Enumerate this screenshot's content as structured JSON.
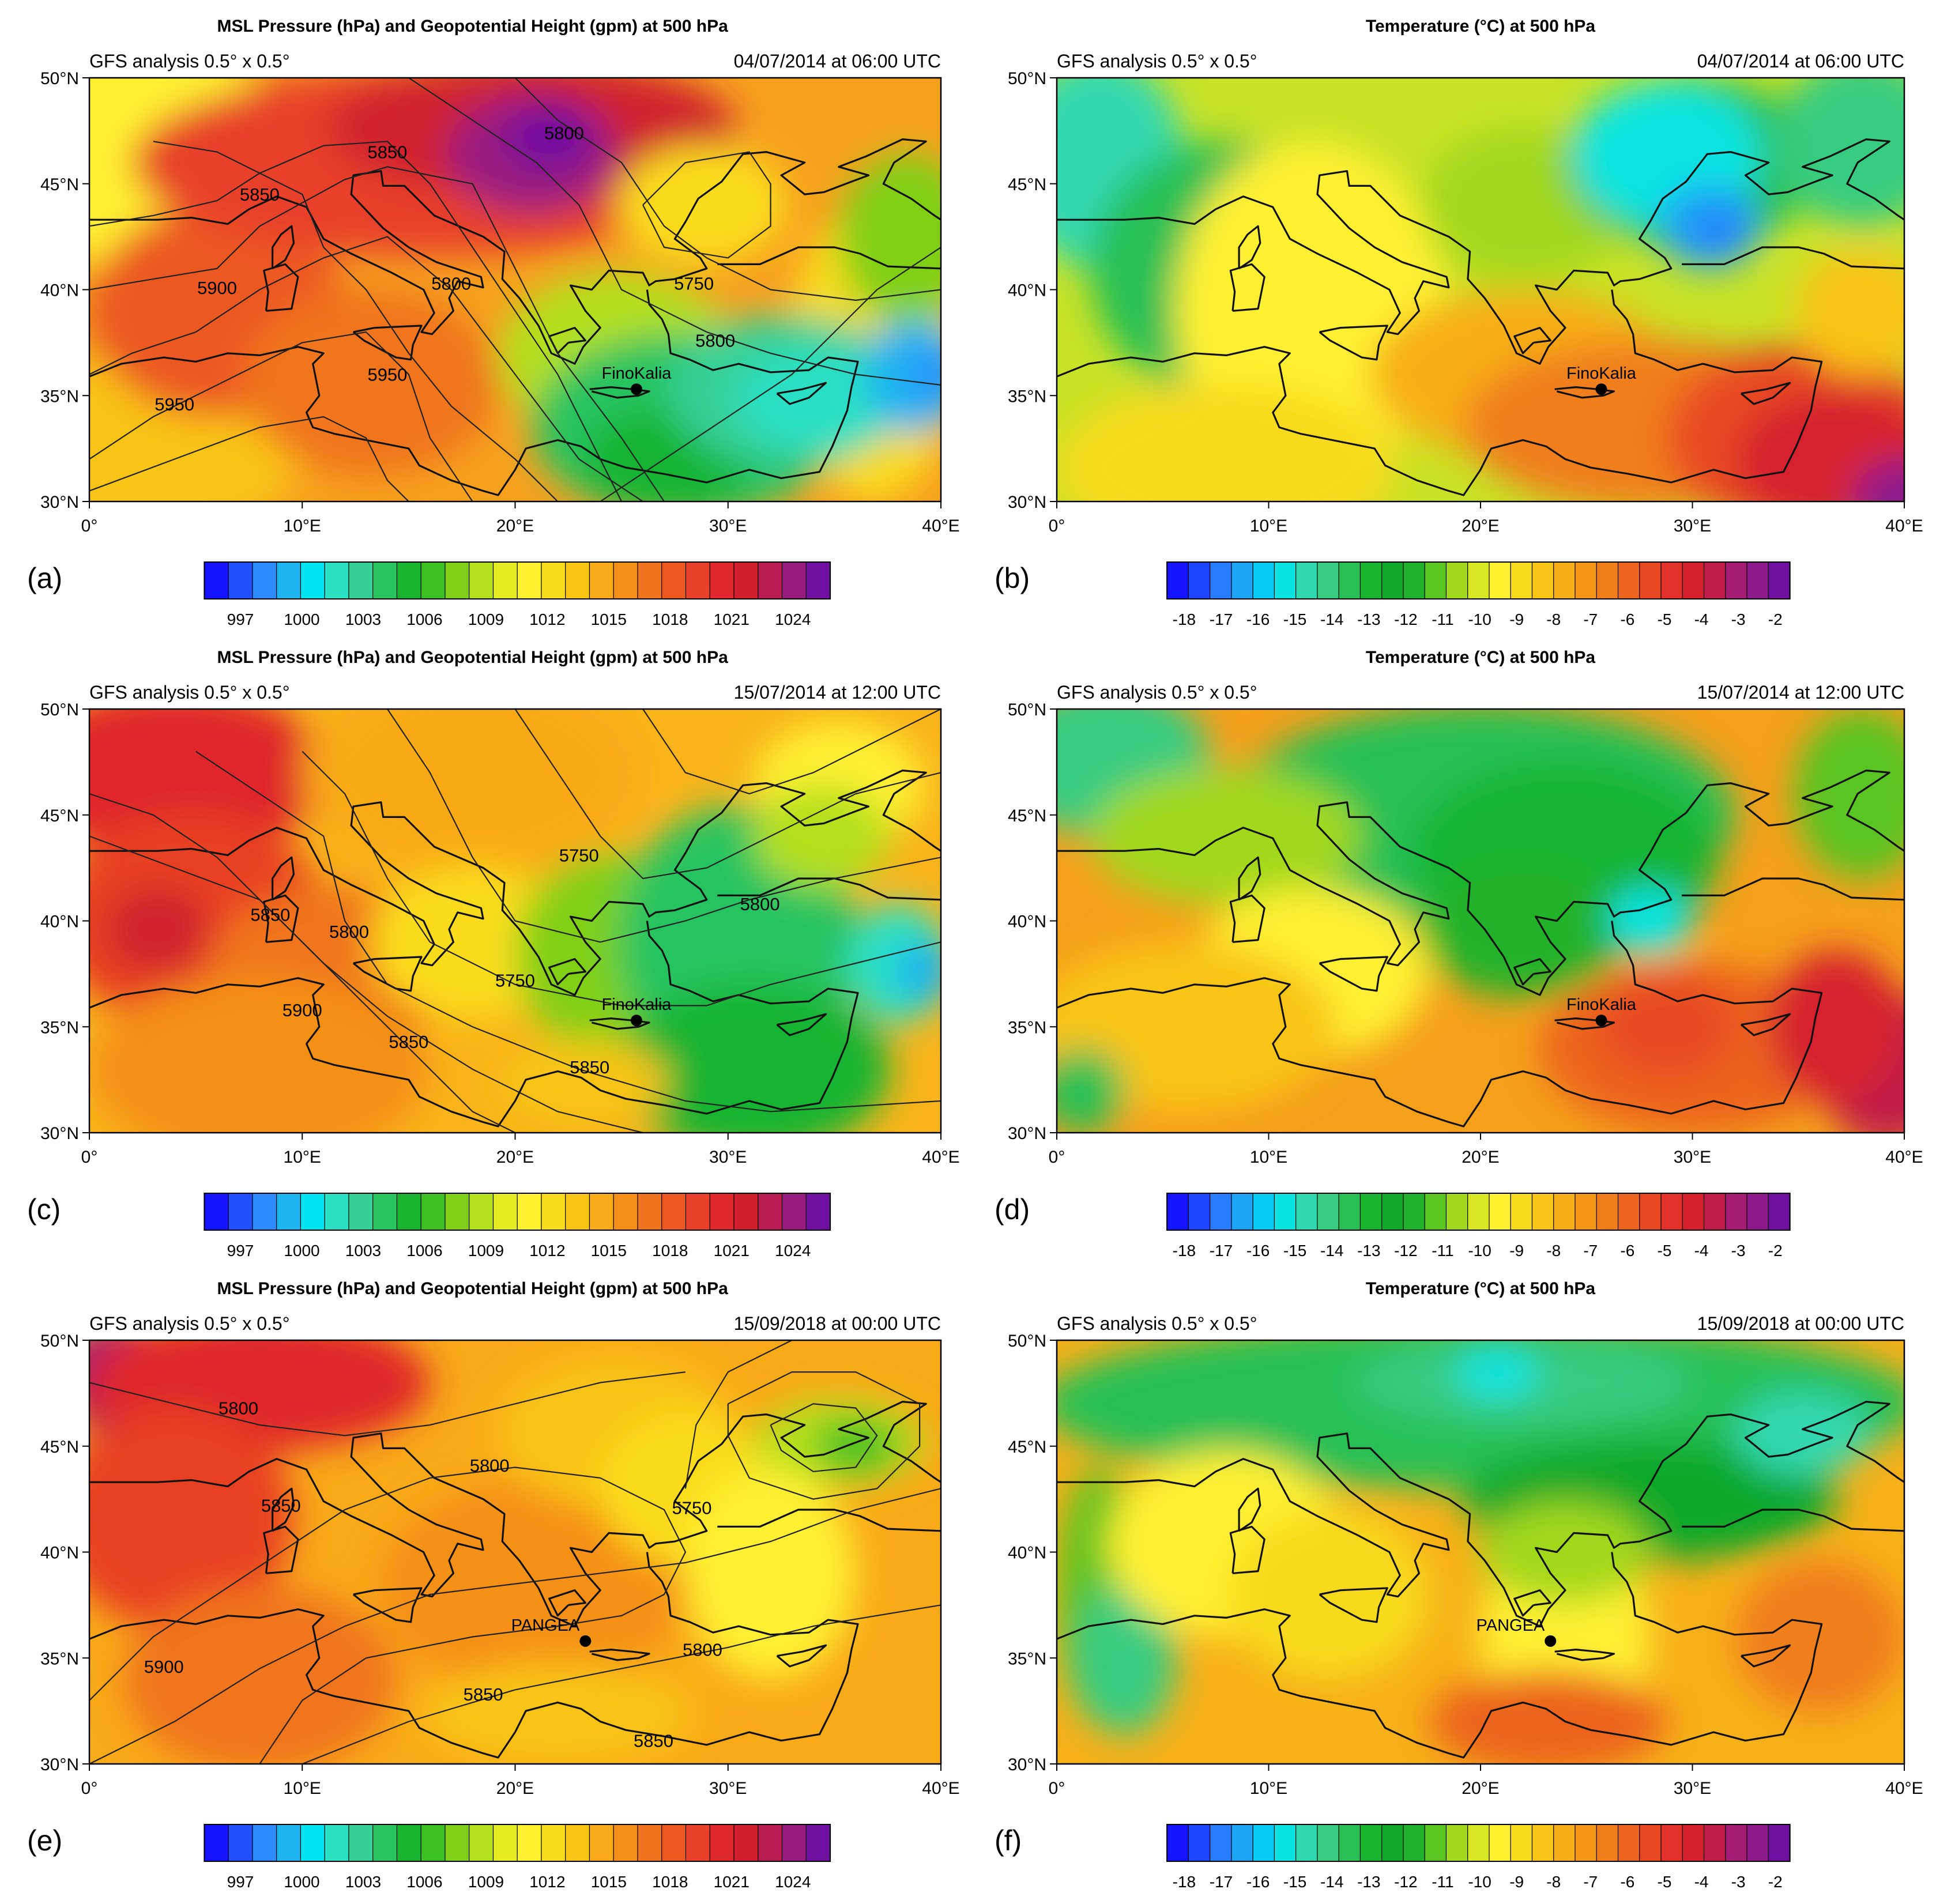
{
  "panels": [
    {
      "letter": "(a)",
      "kind": "pressure",
      "title": "MSL Pressure (hPa) and Geopotential Height (gpm) at 500 hPa",
      "subtitle_left": "GFS analysis 0.5° x 0.5°",
      "subtitle_right": "04/07/2014 at 06:00 UTC",
      "station": "FinoKalia",
      "colorbar": [
        "997",
        "1000",
        "1003",
        "1006",
        "1009",
        "1012",
        "1015",
        "1018",
        "1021",
        "1024"
      ],
      "contour_labels": [
        "5850",
        "5800",
        "5850",
        "5900",
        "5800",
        "5950",
        "5950",
        "5750",
        "5800"
      ]
    },
    {
      "letter": "(b)",
      "kind": "temperature",
      "title": "Temperature (°C) at 500 hPa",
      "subtitle_left": "GFS analysis 0.5° x 0.5°",
      "subtitle_right": "04/07/2014 at 06:00 UTC",
      "station": "FinoKalia",
      "colorbar": [
        "-18",
        "-17",
        "-16",
        "-15",
        "-14",
        "-13",
        "-12",
        "-11",
        "-10",
        "-9",
        "-8",
        "-7",
        "-6",
        "-5",
        "-4",
        "-3",
        "-2"
      ],
      "contour_labels": []
    },
    {
      "letter": "(c)",
      "kind": "pressure",
      "title": "MSL Pressure (hPa) and Geopotential Height (gpm) at 500 hPa",
      "subtitle_left": "GFS analysis 0.5° x 0.5°",
      "subtitle_right": "15/07/2014 at 12:00 UTC",
      "station": "FinoKalia",
      "colorbar": [
        "997",
        "1000",
        "1003",
        "1006",
        "1009",
        "1012",
        "1015",
        "1018",
        "1021",
        "1024"
      ],
      "contour_labels": [
        "5750",
        "5800",
        "5850",
        "5800",
        "5750",
        "5850",
        "5900",
        "5850"
      ]
    },
    {
      "letter": "(d)",
      "kind": "temperature",
      "title": "Temperature (°C) at 500 hPa",
      "subtitle_left": "GFS analysis 0.5° x 0.5°",
      "subtitle_right": "15/07/2014 at 12:00 UTC",
      "station": "FinoKalia",
      "colorbar": [
        "-18",
        "-17",
        "-16",
        "-15",
        "-14",
        "-13",
        "-12",
        "-11",
        "-10",
        "-9",
        "-8",
        "-7",
        "-6",
        "-5",
        "-4",
        "-3",
        "-2"
      ],
      "contour_labels": []
    },
    {
      "letter": "(e)",
      "kind": "pressure",
      "title": "MSL Pressure (hPa) and Geopotential Height (gpm) at 500 hPa",
      "subtitle_left": "GFS analysis 0.5° x 0.5°",
      "subtitle_right": "15/09/2018 at 00:00 UTC",
      "station": "PANGEA",
      "colorbar": [
        "997",
        "1000",
        "1003",
        "1006",
        "1009",
        "1012",
        "1015",
        "1018",
        "1021",
        "1024"
      ],
      "contour_labels": [
        "5800",
        "5800",
        "5850",
        "5750",
        "5800",
        "5900",
        "5850",
        "5850"
      ]
    },
    {
      "letter": "(f)",
      "kind": "temperature",
      "title": "Temperature (°C) at 500 hPa",
      "subtitle_left": "GFS analysis 0.5° x 0.5°",
      "subtitle_right": "15/09/2018 at 00:00 UTC",
      "station": "PANGEA",
      "colorbar": [
        "-18",
        "-17",
        "-16",
        "-15",
        "-14",
        "-13",
        "-12",
        "-11",
        "-10",
        "-9",
        "-8",
        "-7",
        "-6",
        "-5",
        "-4",
        "-3",
        "-2"
      ],
      "contour_labels": []
    }
  ],
  "axes": {
    "lat_ticks": [
      "30°N",
      "35°N",
      "40°N",
      "45°N",
      "50°N"
    ],
    "lon_ticks": [
      "0°",
      "10°E",
      "20°E",
      "30°E",
      "40°E"
    ]
  },
  "stations": {
    "FinoKalia": {
      "lon": 25.7,
      "lat": 35.3
    },
    "PANGEA": {
      "lon": 23.3,
      "lat": 35.8
    }
  },
  "colors": {
    "pressure_scale": [
      "#1414ff",
      "#2050ff",
      "#2c8cff",
      "#1eb4f0",
      "#00e4f0",
      "#2ce0c4",
      "#34d096",
      "#28c460",
      "#18b430",
      "#3cc022",
      "#80d018",
      "#b4e01c",
      "#e6ec24",
      "#fff030",
      "#fadc1e",
      "#f8c414",
      "#f8aa18",
      "#f49018",
      "#f0741e",
      "#ec5820",
      "#e8402a",
      "#e0282c",
      "#d0202e",
      "#b81c52",
      "#981c80",
      "#7010a0"
    ],
    "temperature_scale": [
      "#1414ff",
      "#1e46ff",
      "#287cff",
      "#1ea4f4",
      "#08ccf4",
      "#0ae4e0",
      "#30d8b0",
      "#38cc80",
      "#28c054",
      "#18b430",
      "#10a82a",
      "#20b22c",
      "#5ac420",
      "#a0d81e",
      "#d8e824",
      "#fff030",
      "#f8da1e",
      "#f8c416",
      "#f6ae18",
      "#f49618",
      "#f07e1a",
      "#ec641e",
      "#e84822",
      "#e2302a",
      "#d6202e",
      "#c01c4a",
      "#a41c74",
      "#8c1a8c",
      "#7010a0"
    ]
  }
}
